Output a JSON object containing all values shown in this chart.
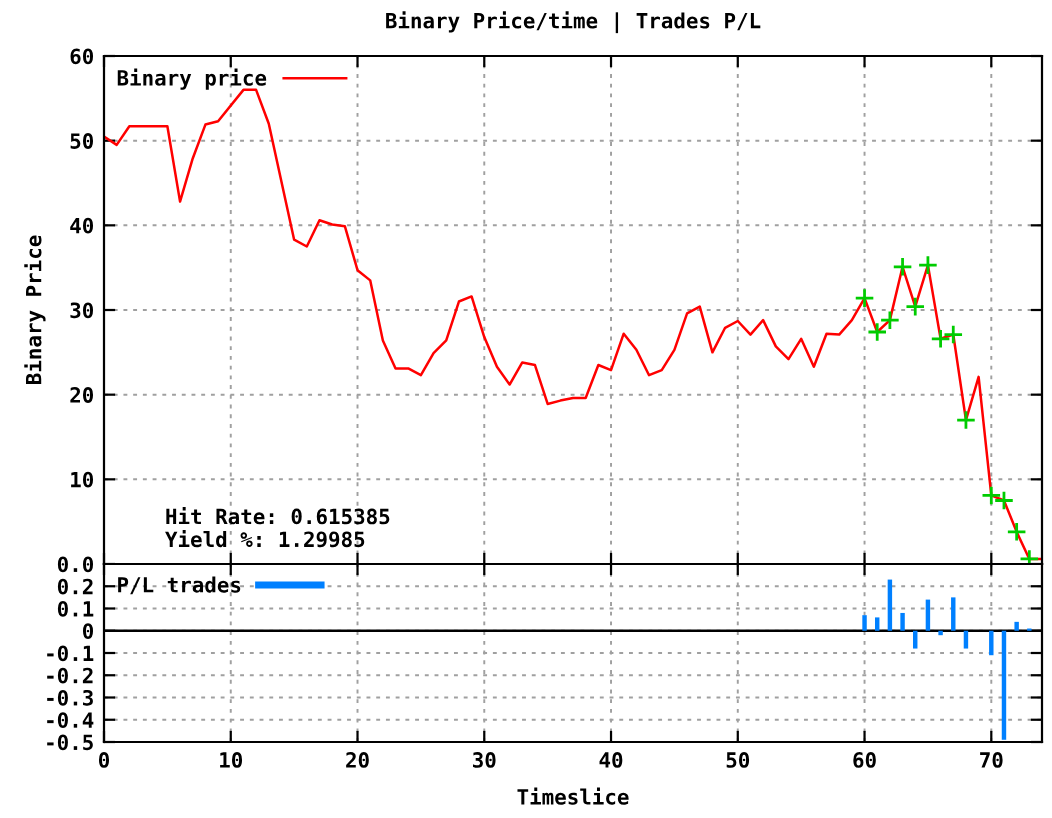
{
  "chart_data": [
    {
      "type": "line",
      "title": "Binary Price/time | Trades P/L",
      "ylabel": "Binary Price",
      "xlim": [
        0,
        74
      ],
      "xticks": [
        0,
        10,
        20,
        30,
        40,
        50,
        60,
        70
      ],
      "tick_labels": "y",
      "ylim": [
        0,
        60
      ],
      "yticks": [
        {
          "value": 0,
          "label": "0.0"
        },
        10,
        20,
        30,
        40,
        50,
        60
      ],
      "grid": true,
      "legend": "top left",
      "annotations": [
        "Hit Rate: 0.615385",
        "Yield %: 1.29985"
      ],
      "series": [
        {
          "name": "Binary price",
          "color": "#ff0000",
          "marker": "none",
          "line_style": "solid",
          "x": [
            0,
            1,
            2,
            5,
            6,
            7,
            8,
            9,
            11,
            12,
            13,
            15,
            16,
            17,
            18,
            19,
            20,
            21,
            22,
            23,
            24,
            25,
            26,
            27,
            28,
            29,
            30,
            31,
            32,
            33,
            34,
            35,
            36,
            37,
            38,
            39,
            40,
            41,
            42,
            43,
            44,
            45,
            46,
            47,
            48,
            49,
            50,
            51,
            52,
            53,
            54,
            55,
            56,
            57,
            58,
            59,
            60,
            61,
            62,
            63,
            64,
            65,
            66,
            67,
            68,
            69,
            70,
            71,
            72,
            73,
            74
          ],
          "values": [
            50.5,
            49.5,
            51.7,
            51.7,
            42.8,
            47.9,
            51.9,
            52.3,
            56,
            56,
            52,
            38.3,
            37.5,
            40.6,
            40.1,
            39.9,
            34.7,
            33.5,
            26.4,
            23.1,
            23.1,
            22.3,
            24.9,
            26.4,
            31,
            31.6,
            26.8,
            23.3,
            21.2,
            23.8,
            23.5,
            18.9,
            19.3,
            19.6,
            19.6,
            23.5,
            22.9,
            27.2,
            25.3,
            22.3,
            22.9,
            25.3,
            29.6,
            30.4,
            25,
            27.9,
            28.7,
            27.1,
            28.8,
            25.7,
            24.2,
            26.6,
            23.3,
            27.2,
            27.1,
            28.8,
            31.4,
            27.4,
            28.8,
            35.1,
            30.4,
            35.3,
            26.6,
            27.1,
            17,
            22.1,
            8.1,
            7.5,
            3.8,
            0.6,
            0.6
          ]
        },
        {
          "type": "scatter",
          "color": "#00cc00",
          "marker": "cross",
          "x": [
            60,
            61,
            62,
            63,
            64,
            65,
            66,
            67,
            68,
            70,
            71,
            72,
            73
          ],
          "values": [
            31.4,
            27.4,
            28.8,
            35.1,
            30.4,
            35.3,
            26.6,
            27.1,
            17,
            8.1,
            7.5,
            3.8,
            0.6
          ]
        }
      ]
    },
    {
      "type": "bar",
      "xlabel": "Timeslice",
      "xlim": [
        0,
        74
      ],
      "xticks": [
        0,
        10,
        20,
        30,
        40,
        50,
        60,
        70
      ],
      "ylim": [
        -0.5,
        0.3
      ],
      "yticks": [
        -0.5,
        -0.4,
        -0.3,
        -0.2,
        -0.1,
        0,
        0.1,
        0.2
      ],
      "grid": true,
      "legend": "top left",
      "ref_lines": [
        {
          "axis": "y",
          "value": 0,
          "color": "#000000"
        }
      ],
      "series": [
        {
          "name": "P/L trades",
          "color": "#0080ff",
          "x": [
            60,
            61,
            62,
            63,
            64,
            65,
            66,
            67,
            68,
            70,
            71,
            72,
            73
          ],
          "values": [
            0.07,
            0.06,
            0.23,
            0.08,
            -0.08,
            0.14,
            -0.02,
            0.15,
            -0.08,
            -0.11,
            -0.49,
            0.04,
            0.01
          ]
        }
      ]
    }
  ]
}
